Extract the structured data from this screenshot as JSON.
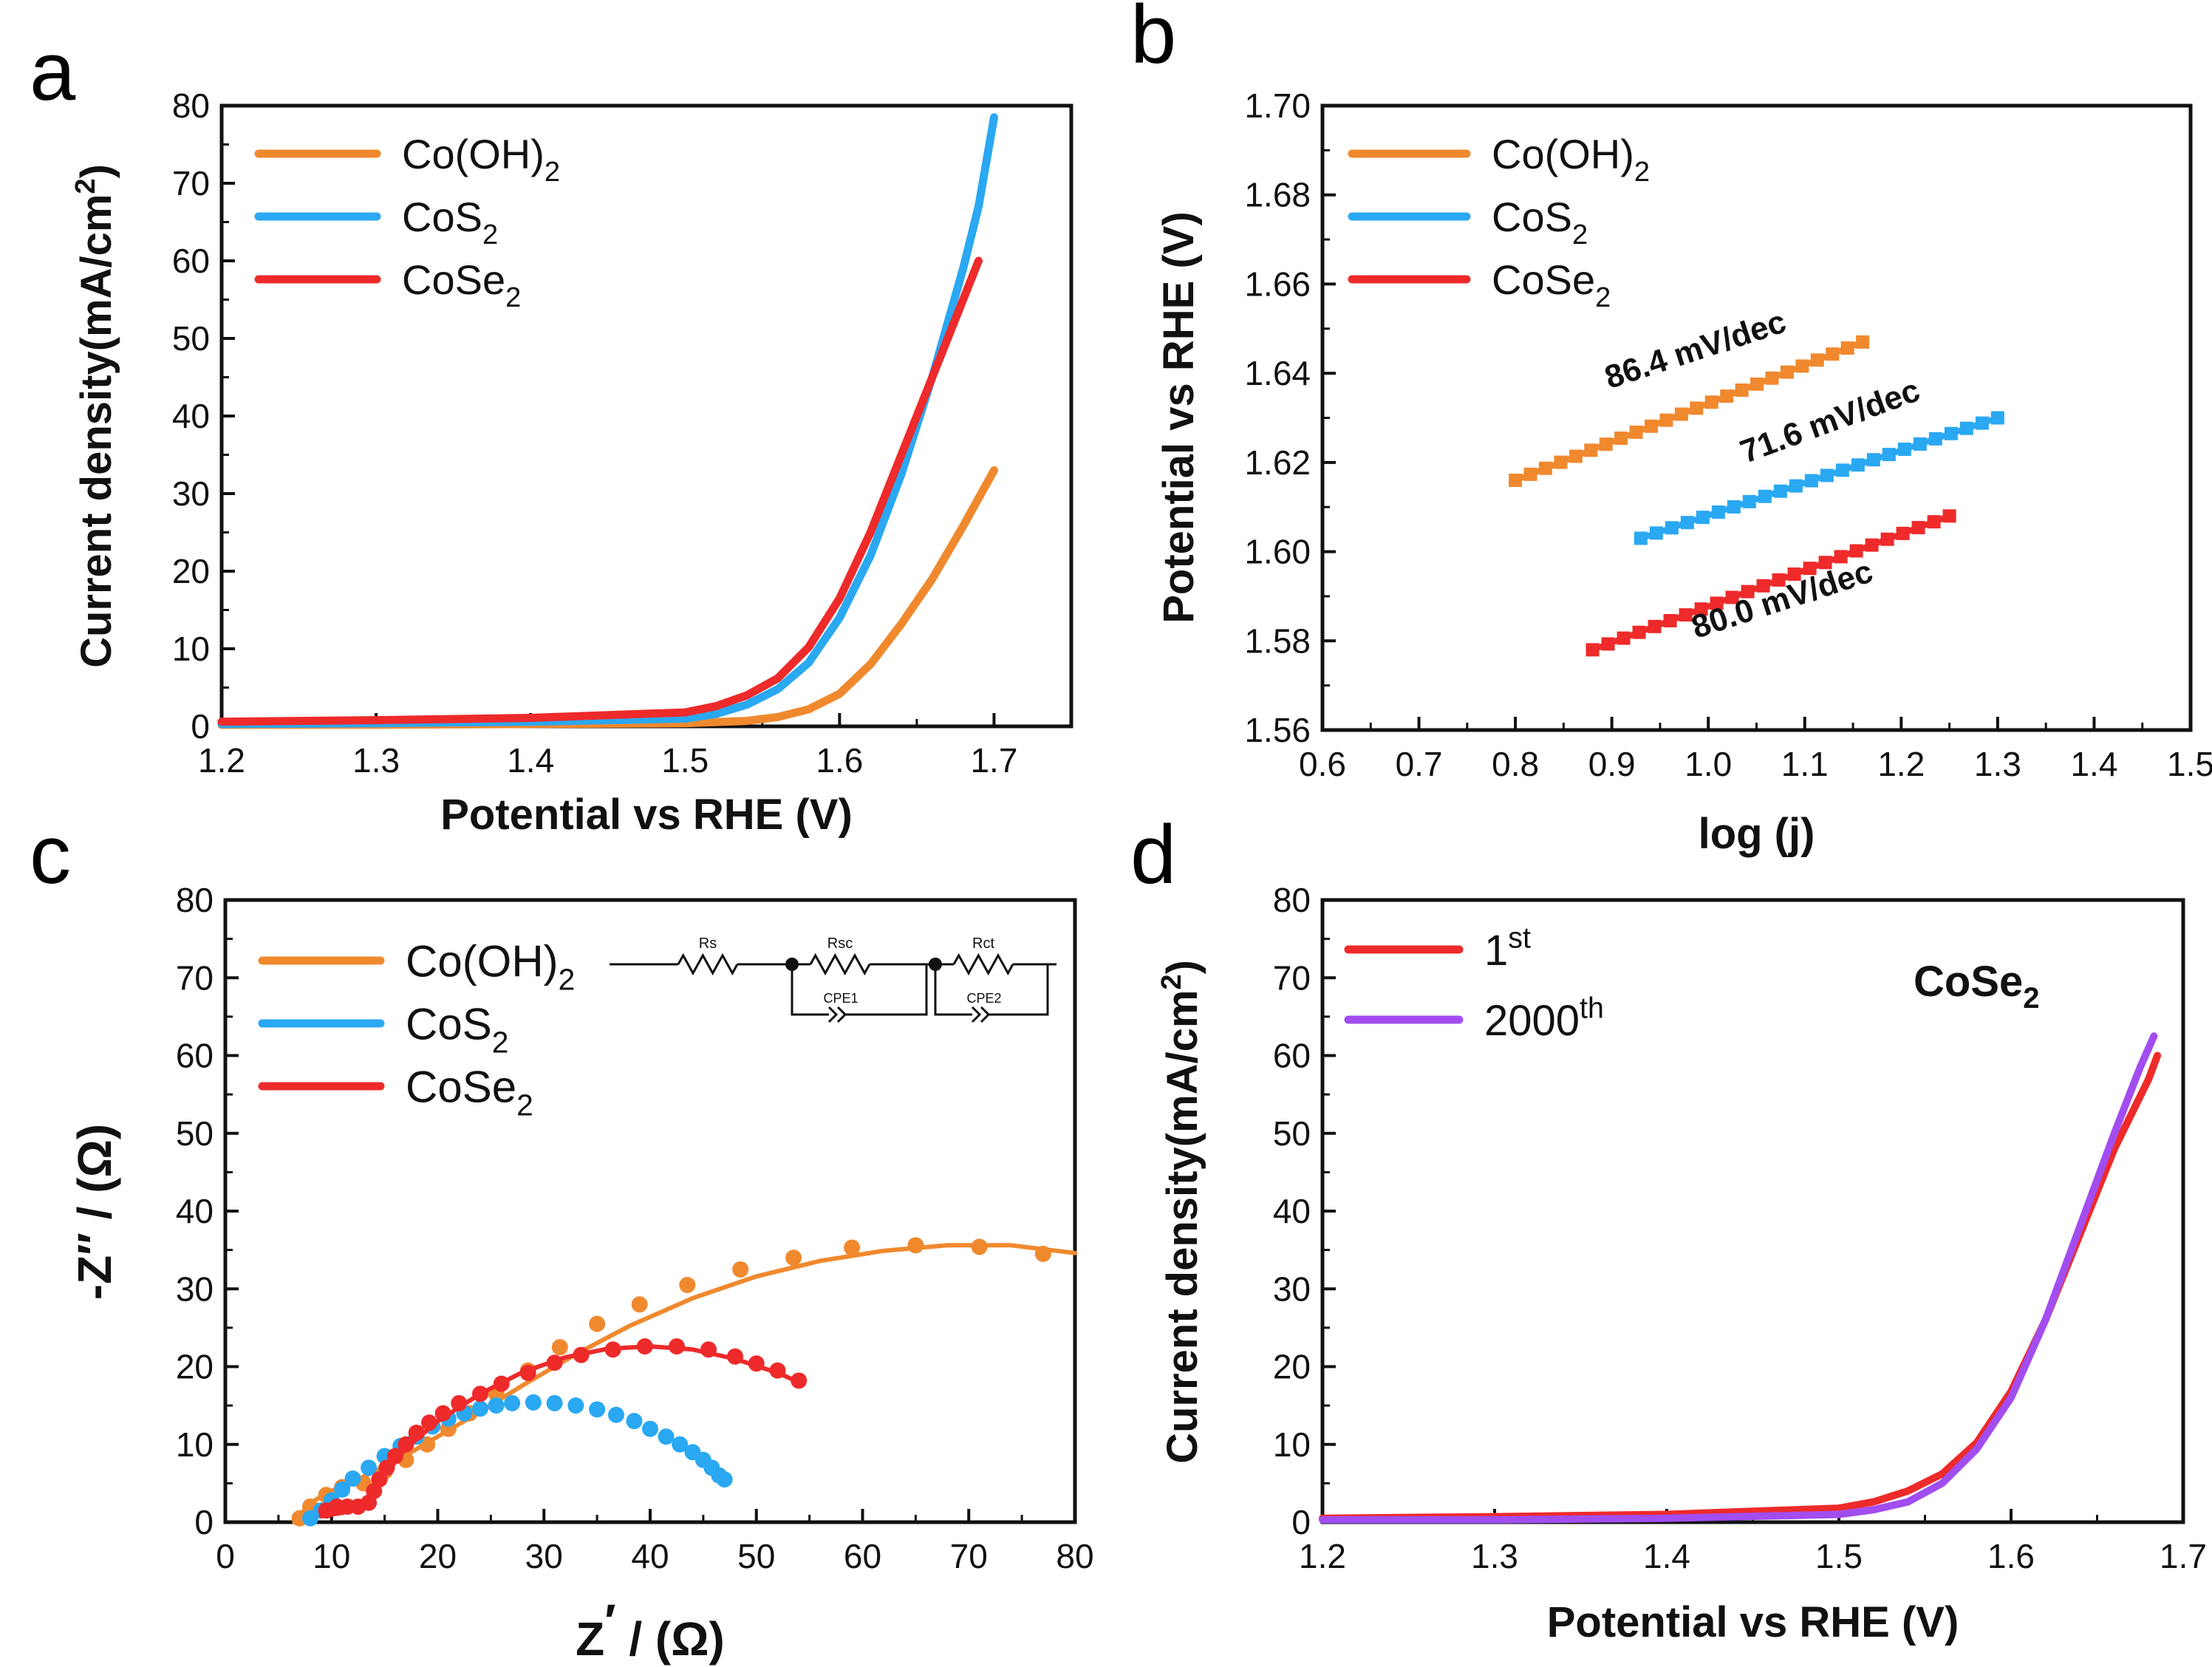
{
  "colors": {
    "co_oh2": "#f0892e",
    "cos2": "#2aa8f2",
    "cose2": "#ee2a2a",
    "cycle_2000": "#a24df0",
    "axis": "#111111"
  },
  "chart_data": [
    {
      "panel": "a",
      "type": "line",
      "xlabel": "Potential vs RHE (V)",
      "ylabel": "Current density(mA/cm2)",
      "xlim": [
        1.2,
        1.75
      ],
      "ylim": [
        0,
        80
      ],
      "xticks": [
        "1.2",
        "1.3",
        "1.4",
        "1.5",
        "1.6",
        "1.7"
      ],
      "yticks": [
        "0",
        "10",
        "20",
        "30",
        "40",
        "50",
        "60",
        "70",
        "80"
      ],
      "legend_position": "top-left",
      "series": [
        {
          "name": "Co(OH)2",
          "base": "Co(OH)",
          "sub": "2",
          "color": "#f0892e",
          "x": [
            1.2,
            1.3,
            1.4,
            1.5,
            1.54,
            1.56,
            1.58,
            1.6,
            1.62,
            1.64,
            1.66,
            1.68,
            1.7
          ],
          "y": [
            0.2,
            0.2,
            0.3,
            0.4,
            0.7,
            1.2,
            2.2,
            4.2,
            8.0,
            13.2,
            19.0,
            25.8,
            33.0
          ]
        },
        {
          "name": "CoS2",
          "base": "CoS",
          "sub": "2",
          "color": "#2aa8f2",
          "x": [
            1.2,
            1.3,
            1.4,
            1.5,
            1.52,
            1.54,
            1.56,
            1.58,
            1.6,
            1.62,
            1.64,
            1.66,
            1.68,
            1.69,
            1.7
          ],
          "y": [
            0.3,
            0.4,
            0.6,
            1.0,
            1.6,
            2.8,
            4.8,
            8.2,
            14.0,
            22.0,
            32.5,
            45.0,
            59.0,
            67.0,
            78.5
          ]
        },
        {
          "name": "CoSe2",
          "base": "CoSe",
          "sub": "2",
          "color": "#ee2a2a",
          "x": [
            1.2,
            1.3,
            1.4,
            1.5,
            1.52,
            1.54,
            1.56,
            1.58,
            1.6,
            1.62,
            1.64,
            1.66,
            1.68,
            1.69
          ],
          "y": [
            0.6,
            0.8,
            1.1,
            1.8,
            2.6,
            4.0,
            6.2,
            10.2,
            16.5,
            25.0,
            35.0,
            45.0,
            55.0,
            60.0
          ]
        }
      ]
    },
    {
      "panel": "b",
      "type": "scatter",
      "xlabel": "log (j)",
      "ylabel": "Potential vs RHE (V)",
      "xlim": [
        0.6,
        1.5
      ],
      "ylim": [
        1.56,
        1.7
      ],
      "xticks": [
        "0.6",
        "0.7",
        "0.8",
        "0.9",
        "1.0",
        "1.1",
        "1.2",
        "1.3",
        "1.4",
        "1.5"
      ],
      "yticks": [
        "1.56",
        "1.58",
        "1.60",
        "1.62",
        "1.64",
        "1.66",
        "1.68",
        "1.70"
      ],
      "legend_position": "top-left",
      "series": [
        {
          "name": "Co(OH)2",
          "base": "Co(OH)",
          "sub": "2",
          "color": "#f0892e",
          "x_start": 0.8,
          "x_end": 1.16,
          "y_start": 1.616,
          "y_end": 1.647,
          "points": 24,
          "annotation": "86.4 mV/dec"
        },
        {
          "name": "CoS2",
          "base": "CoS",
          "sub": "2",
          "color": "#2aa8f2",
          "x_start": 0.93,
          "x_end": 1.3,
          "y_start": 1.603,
          "y_end": 1.63,
          "points": 24,
          "annotation": "71.6 mV/dec"
        },
        {
          "name": "CoSe2",
          "base": "CoSe",
          "sub": "2",
          "color": "#ee2a2a",
          "x_start": 0.88,
          "x_end": 1.25,
          "y_start": 1.578,
          "y_end": 1.608,
          "points": 24,
          "annotation": "80.0 mV/dec"
        }
      ]
    },
    {
      "panel": "c",
      "type": "scatter",
      "xlabel_main": "Z",
      "xlabel_sup": "′",
      "xlabel_unit": " / (Ω)",
      "ylabel": "-Z′′ / (Ω)",
      "xlim": [
        0,
        80
      ],
      "ylim": [
        0,
        80
      ],
      "xticks": [
        "0",
        "10",
        "20",
        "30",
        "40",
        "50",
        "60",
        "70",
        "80"
      ],
      "yticks": [
        "0",
        "10",
        "20",
        "30",
        "40",
        "50",
        "60",
        "70",
        "80"
      ],
      "legend_position": "top-left",
      "circuit_labels": [
        "Rs",
        "Rsc",
        "Rct",
        "CPE1",
        "CPE2"
      ],
      "series": [
        {
          "name": "Co(OH)2",
          "base": "Co(OH)",
          "sub": "2",
          "color": "#f0892e",
          "points_x": [
            7.0,
            8.0,
            9.5,
            11.0,
            13.0,
            15.0,
            17.0,
            19.0,
            21.0,
            23.0,
            25.5,
            28.5,
            31.5,
            35.0,
            39.0,
            43.5,
            48.5,
            53.5,
            59.0,
            65.0,
            71.0,
            77.0
          ],
          "points_y": [
            0.5,
            2.0,
            3.5,
            4.5,
            5.0,
            6.5,
            8.0,
            10.0,
            12.0,
            14.0,
            16.5,
            19.5,
            22.5,
            25.5,
            28.0,
            30.5,
            32.5,
            34.0,
            35.3,
            35.6,
            35.4,
            34.5
          ],
          "fit_x": [
            6.5,
            8,
            10,
            12,
            14,
            17,
            20,
            24,
            28,
            33,
            38,
            44,
            50,
            56,
            62,
            68,
            74,
            80
          ],
          "fit_y": [
            0,
            2.5,
            4.0,
            5.2,
            6.5,
            8.6,
            11.0,
            14.2,
            17.6,
            21.6,
            25.2,
            28.8,
            31.6,
            33.6,
            34.9,
            35.6,
            35.6,
            34.6
          ]
        },
        {
          "name": "CoS2",
          "base": "CoS",
          "sub": "2",
          "color": "#2aa8f2",
          "points_x": [
            8.0,
            9.0,
            10.0,
            11.0,
            12.0,
            13.5,
            15.0,
            16.5,
            18.0,
            19.5,
            21.0,
            22.5,
            24.0,
            25.5,
            27.0,
            29.0,
            31.0,
            33.0,
            35.0,
            36.8,
            38.5,
            40.0,
            41.5,
            42.8,
            44.0,
            45.0,
            45.8,
            46.5,
            47.0
          ],
          "points_y": [
            0.5,
            1.5,
            2.8,
            4.2,
            5.6,
            7.0,
            8.5,
            9.8,
            11.0,
            12.3,
            13.3,
            14.0,
            14.6,
            15.0,
            15.3,
            15.4,
            15.3,
            15.0,
            14.5,
            13.8,
            13.0,
            12.0,
            11.0,
            10.0,
            9.0,
            8.0,
            7.0,
            6.0,
            5.5
          ]
        },
        {
          "name": "CoSe2",
          "base": "CoSe",
          "sub": "2",
          "color": "#ee2a2a",
          "points_x": [
            9.5,
            10.5,
            11.5,
            12.5,
            13.5,
            14.0,
            14.5,
            15.2,
            16.0,
            17.0,
            18.0,
            19.2,
            20.5,
            22.0,
            24.0,
            26.0,
            28.5,
            31.0,
            33.5,
            36.5,
            39.5,
            42.5,
            45.5,
            48.0,
            50.0,
            52.0,
            54.0
          ],
          "points_y": [
            1.5,
            2.0,
            2.0,
            2.0,
            2.5,
            4.0,
            5.5,
            7.0,
            8.5,
            10.0,
            11.5,
            12.8,
            14.0,
            15.3,
            16.5,
            17.8,
            19.2,
            20.5,
            21.5,
            22.2,
            22.6,
            22.6,
            22.2,
            21.3,
            20.4,
            19.5,
            18.2
          ],
          "fit_x": [
            9,
            11,
            13,
            15,
            17,
            20,
            24,
            28,
            32,
            36,
            40,
            44,
            48,
            52,
            54
          ],
          "fit_y": [
            0.8,
            1.2,
            2.0,
            6.0,
            9.5,
            13.0,
            16.5,
            19.3,
            21.2,
            22.3,
            22.6,
            22.2,
            21.0,
            19.2,
            18.0
          ]
        }
      ]
    },
    {
      "panel": "d",
      "type": "line",
      "xlabel": "Potential vs RHE (V)",
      "ylabel": "Current density(mA/cm2)",
      "xlim": [
        1.2,
        1.7
      ],
      "ylim": [
        0,
        80
      ],
      "xticks": [
        "1.2",
        "1.3",
        "1.4",
        "1.5",
        "1.6",
        "1.7"
      ],
      "yticks": [
        "0",
        "10",
        "20",
        "30",
        "40",
        "50",
        "60",
        "70",
        "80"
      ],
      "legend_position": "top-left",
      "annotation_base": "CoSe",
      "annotation_sub": "2",
      "series": [
        {
          "name": "1st",
          "base": "1",
          "sup": "st",
          "color": "#ee2a2a",
          "x": [
            1.2,
            1.3,
            1.4,
            1.5,
            1.52,
            1.54,
            1.56,
            1.58,
            1.6,
            1.62,
            1.64,
            1.66,
            1.68,
            1.685
          ],
          "y": [
            0.5,
            0.7,
            1.0,
            1.8,
            2.6,
            4.0,
            6.2,
            10.2,
            16.8,
            26.0,
            37.0,
            48.0,
            57.0,
            60.0
          ]
        },
        {
          "name": "2000th",
          "base": "2000",
          "sup": "th",
          "color": "#a24df0",
          "x": [
            1.2,
            1.3,
            1.4,
            1.5,
            1.52,
            1.54,
            1.56,
            1.58,
            1.6,
            1.62,
            1.64,
            1.66,
            1.675,
            1.683
          ],
          "y": [
            0.3,
            0.3,
            0.5,
            1.0,
            1.6,
            2.6,
            5.0,
            9.4,
            16.0,
            26.0,
            38.0,
            50.0,
            58.5,
            62.5
          ]
        }
      ]
    }
  ],
  "panel_labels": [
    "a",
    "b",
    "c",
    "d"
  ]
}
